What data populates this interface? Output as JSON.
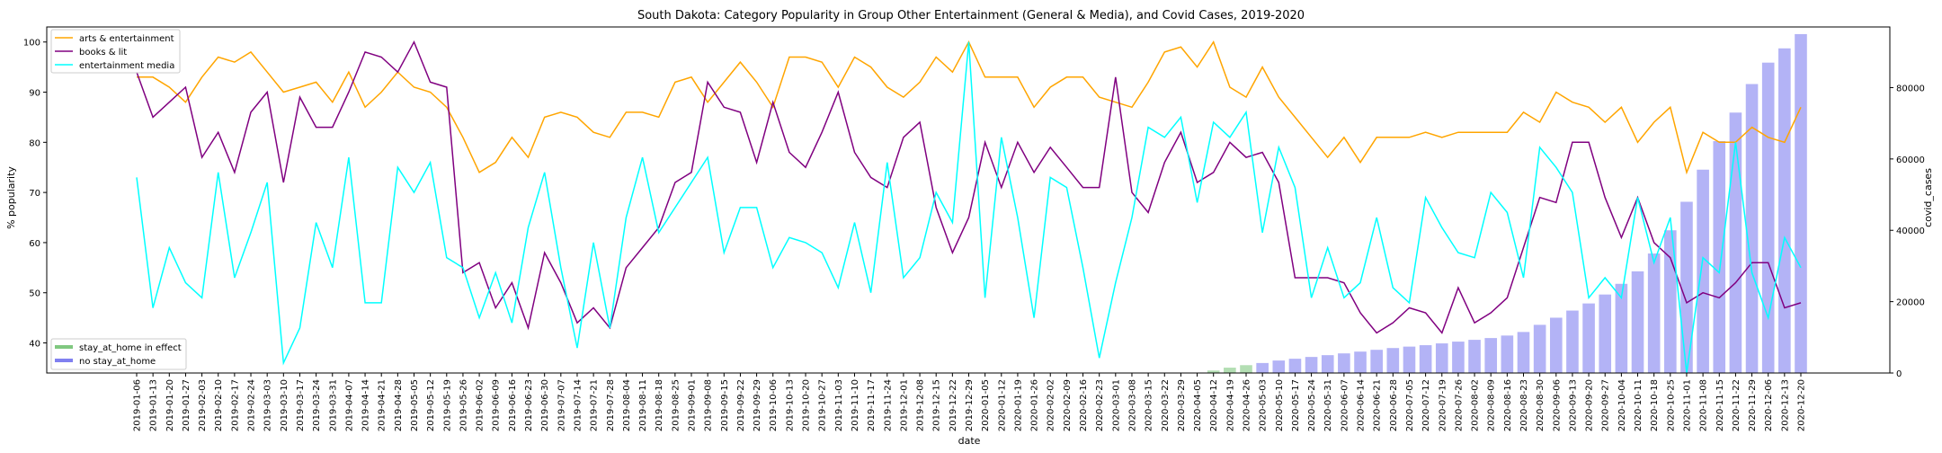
{
  "chart_data": {
    "type": "line",
    "title": "South Dakota: Category Popularity in Group Other Entertainment (General & Media), and Covid Cases, 2019-2020",
    "xlabel": "date",
    "ylabel": "% popularity",
    "y2label": "covid_cases",
    "ylim": [
      34,
      103
    ],
    "y2lim": [
      0,
      97000
    ],
    "yticks": [
      40,
      50,
      60,
      70,
      80,
      90,
      100
    ],
    "y2ticks": [
      0,
      20000,
      40000,
      60000,
      80000
    ],
    "legend_placement": "top-left",
    "legend2_placement": "bottom-left",
    "x": [
      "2019-01-06",
      "2019-01-13",
      "2019-01-20",
      "2019-01-27",
      "2019-02-03",
      "2019-02-10",
      "2019-02-17",
      "2019-02-24",
      "2019-03-03",
      "2019-03-10",
      "2019-03-17",
      "2019-03-24",
      "2019-03-31",
      "2019-04-07",
      "2019-04-14",
      "2019-04-21",
      "2019-04-28",
      "2019-05-05",
      "2019-05-12",
      "2019-05-19",
      "2019-05-26",
      "2019-06-02",
      "2019-06-09",
      "2019-06-16",
      "2019-06-23",
      "2019-06-30",
      "2019-07-07",
      "2019-07-14",
      "2019-07-21",
      "2019-07-28",
      "2019-08-04",
      "2019-08-11",
      "2019-08-18",
      "2019-08-25",
      "2019-09-01",
      "2019-09-08",
      "2019-09-15",
      "2019-09-22",
      "2019-09-29",
      "2019-10-06",
      "2019-10-13",
      "2019-10-20",
      "2019-10-27",
      "2019-11-03",
      "2019-11-10",
      "2019-11-17",
      "2019-11-24",
      "2019-12-01",
      "2019-12-08",
      "2019-12-15",
      "2019-12-22",
      "2019-12-29",
      "2020-01-05",
      "2020-01-12",
      "2020-01-19",
      "2020-01-26",
      "2020-02-02",
      "2020-02-09",
      "2020-02-16",
      "2020-02-23",
      "2020-03-01",
      "2020-03-08",
      "2020-03-15",
      "2020-03-22",
      "2020-03-29",
      "2020-04-05",
      "2020-04-12",
      "2020-04-19",
      "2020-04-26",
      "2020-05-03",
      "2020-05-10",
      "2020-05-17",
      "2020-05-24",
      "2020-05-31",
      "2020-06-07",
      "2020-06-14",
      "2020-06-21",
      "2020-06-28",
      "2020-07-05",
      "2020-07-12",
      "2020-07-19",
      "2020-07-26",
      "2020-08-02",
      "2020-08-09",
      "2020-08-16",
      "2020-08-23",
      "2020-08-30",
      "2020-09-06",
      "2020-09-13",
      "2020-09-20",
      "2020-09-27",
      "2020-10-04",
      "2020-10-11",
      "2020-10-18",
      "2020-10-25",
      "2020-11-01",
      "2020-11-08",
      "2020-11-15",
      "2020-11-22",
      "2020-11-29",
      "2020-12-06",
      "2020-12-13",
      "2020-12-20"
    ],
    "series": [
      {
        "name": "arts & entertainment",
        "color": "#ffa500",
        "values": [
          93,
          93,
          91,
          88,
          93,
          97,
          96,
          98,
          94,
          90,
          91,
          92,
          88,
          94,
          87,
          90,
          94,
          91,
          90,
          87,
          81,
          74,
          76,
          81,
          77,
          85,
          86,
          85,
          82,
          81,
          86,
          86,
          85,
          92,
          93,
          88,
          92,
          96,
          92,
          87,
          97,
          97,
          96,
          91,
          97,
          95,
          91,
          89,
          92,
          97,
          94,
          100,
          93,
          93,
          93,
          87,
          91,
          93,
          93,
          89,
          88,
          87,
          92,
          98,
          99,
          95,
          100,
          91,
          89,
          95,
          89,
          85,
          81,
          77,
          81,
          76,
          81,
          81,
          81,
          82,
          81,
          82,
          82,
          82,
          82,
          86,
          84,
          90,
          88,
          87,
          84,
          87,
          80,
          84,
          87,
          74,
          82,
          80,
          80,
          83,
          81,
          80,
          87
        ]
      },
      {
        "name": "books & lit",
        "color": "#800080",
        "values": [
          94,
          85,
          88,
          91,
          77,
          82,
          74,
          86,
          90,
          72,
          89,
          83,
          83,
          90,
          98,
          97,
          94,
          100,
          92,
          91,
          54,
          56,
          47,
          52,
          43,
          58,
          52,
          44,
          47,
          43,
          55,
          59,
          63,
          72,
          74,
          92,
          87,
          86,
          76,
          88,
          78,
          75,
          82,
          90,
          78,
          73,
          71,
          81,
          84,
          67,
          58,
          65,
          80,
          71,
          80,
          74,
          79,
          75,
          71,
          71,
          93,
          70,
          66,
          76,
          82,
          72,
          74,
          80,
          77,
          78,
          72,
          53,
          53,
          53,
          52,
          46,
          42,
          44,
          47,
          46,
          42,
          51,
          44,
          46,
          49,
          59,
          69,
          68,
          80,
          80,
          69,
          61,
          69,
          60,
          57,
          48,
          50,
          49,
          52,
          56,
          56,
          47,
          48
        ]
      },
      {
        "name": "entertainment media",
        "color": "#00ffff",
        "values": [
          73,
          47,
          59,
          52,
          49,
          74,
          53,
          62,
          72,
          36,
          43,
          64,
          55,
          77,
          48,
          48,
          75,
          70,
          76,
          57,
          55,
          45,
          54,
          44,
          63,
          74,
          55,
          39,
          60,
          43,
          65,
          77,
          62,
          67,
          72,
          77,
          58,
          67,
          67,
          55,
          61,
          60,
          58,
          51,
          64,
          50,
          76,
          53,
          57,
          70,
          64,
          100,
          49,
          81,
          65,
          45,
          73,
          71,
          55,
          37,
          52,
          65,
          83,
          81,
          85,
          68,
          84,
          81,
          86,
          62,
          79,
          71,
          49,
          59,
          49,
          52,
          65,
          51,
          48,
          69,
          63,
          58,
          57,
          70,
          66,
          53,
          79,
          75,
          70,
          49,
          53,
          49,
          69,
          56,
          65,
          34,
          57,
          54,
          80,
          54,
          45,
          61,
          55
        ]
      }
    ],
    "bars": {
      "name_legend": [
        "stay_at_home in effect",
        "no stay_at_home"
      ],
      "colors": [
        "#80c880",
        "#8080f0"
      ],
      "stay_at_home_dates": [
        "2020-04-12",
        "2020-04-19",
        "2020-04-26"
      ],
      "values": [
        0,
        0,
        0,
        0,
        0,
        0,
        0,
        0,
        0,
        0,
        0,
        0,
        0,
        0,
        0,
        0,
        0,
        0,
        0,
        0,
        0,
        0,
        0,
        0,
        0,
        0,
        0,
        0,
        0,
        0,
        0,
        0,
        0,
        0,
        0,
        0,
        0,
        0,
        0,
        0,
        0,
        0,
        0,
        0,
        0,
        0,
        0,
        0,
        0,
        0,
        0,
        0,
        0,
        0,
        0,
        0,
        0,
        0,
        0,
        0,
        0,
        0,
        0,
        0,
        0,
        100,
        700,
        1500,
        2200,
        2800,
        3500,
        4000,
        4500,
        5000,
        5500,
        6000,
        6500,
        7000,
        7400,
        7800,
        8300,
        8800,
        9300,
        9800,
        10500,
        11500,
        13500,
        15500,
        17500,
        19500,
        22000,
        25000,
        28500,
        33500,
        40000,
        48000,
        57000,
        65000,
        73000,
        81000,
        87000,
        91000,
        95000
      ]
    }
  }
}
